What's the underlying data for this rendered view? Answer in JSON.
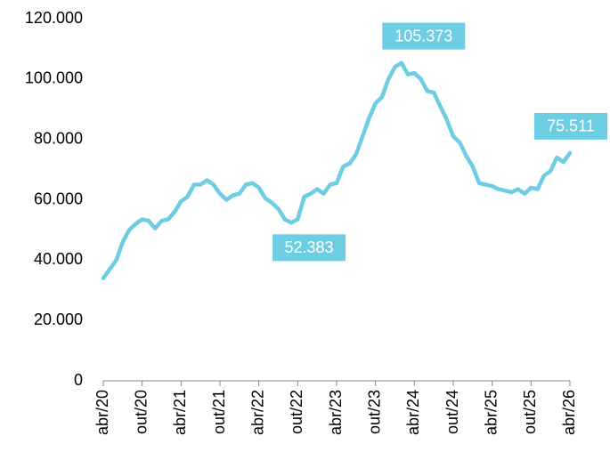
{
  "chart_data": {
    "type": "line",
    "categories": [
      "abr/20",
      null,
      null,
      null,
      null,
      null,
      "out/20",
      null,
      null,
      null,
      null,
      null,
      "abr/21",
      null,
      null,
      null,
      null,
      null,
      "out/21",
      null,
      null,
      null,
      null,
      null,
      "abr/22",
      null,
      null,
      null,
      null,
      null,
      "out/22",
      null,
      null,
      null,
      null,
      null,
      "abr/23",
      null,
      null,
      null,
      null,
      null,
      "out/23",
      null,
      null,
      null,
      null,
      null,
      "abr/24",
      null,
      null,
      null,
      null,
      null,
      "out/24",
      null,
      null,
      null,
      null,
      null,
      "abr/25",
      null,
      null,
      null,
      null,
      null,
      "out/25",
      null,
      null,
      null,
      null,
      null,
      "abr/26"
    ],
    "values": [
      34000,
      37000,
      40000,
      46000,
      50000,
      52000,
      53500,
      53000,
      50500,
      53000,
      53500,
      56000,
      59500,
      61000,
      65000,
      65000,
      66500,
      65000,
      62000,
      60000,
      61500,
      62000,
      65000,
      65500,
      64000,
      60500,
      59000,
      57000,
      53500,
      52383,
      53500,
      61000,
      62000,
      63500,
      62000,
      65000,
      65500,
      71000,
      72000,
      75000,
      81000,
      87000,
      92000,
      94000,
      100000,
      104000,
      105373,
      101500,
      102000,
      100000,
      96000,
      95500,
      91000,
      86500,
      81000,
      79000,
      74500,
      71000,
      65500,
      65000,
      64500,
      63500,
      63000,
      62500,
      63500,
      62000,
      64000,
      63500,
      68000,
      69500,
      74000,
      72500,
      75511
    ],
    "value_labels": [
      null,
      null,
      null,
      null,
      null,
      null,
      null,
      null,
      null,
      null,
      null,
      null,
      null,
      null,
      null,
      null,
      null,
      null,
      null,
      null,
      null,
      null,
      null,
      null,
      null,
      null,
      null,
      null,
      null,
      "52.383",
      null,
      null,
      null,
      null,
      null,
      null,
      null,
      null,
      null,
      null,
      null,
      null,
      null,
      null,
      null,
      null,
      "105.373",
      null,
      null,
      null,
      null,
      null,
      null,
      null,
      null,
      null,
      null,
      null,
      null,
      null,
      null,
      null,
      null,
      null,
      null,
      null,
      null,
      null,
      null,
      null,
      null,
      null,
      "75.511"
    ],
    "color": "#6ccde3",
    "ylim": [
      0,
      120000
    ],
    "yticks": [
      0,
      {
        "value": 20000,
        "label": "20.000"
      },
      {
        "value": 40000,
        "label": "40.000"
      },
      {
        "value": 60000,
        "label": "60.000"
      },
      {
        "value": 80000,
        "label": "80.000"
      },
      {
        "value": 100000,
        "label": "100.000"
      },
      {
        "value": 120000,
        "label": "120.000"
      }
    ],
    "grid": false
  }
}
